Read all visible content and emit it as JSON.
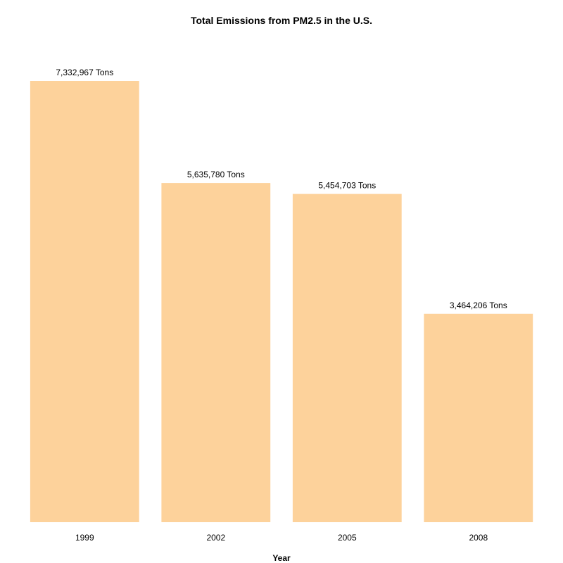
{
  "chart_data": {
    "type": "bar",
    "title": "Total Emissions from PM2.5 in the U.S.",
    "xlabel": "Year",
    "ylabel": "",
    "categories": [
      "1999",
      "2002",
      "2005",
      "2008"
    ],
    "values": [
      7332967,
      5635780,
      5454703,
      3464206
    ],
    "value_labels": [
      "7,332,967 Tons",
      "5,635,780 Tons",
      "5,454,703 Tons",
      "3,464,206 Tons"
    ],
    "ylim": [
      0,
      7332967
    ],
    "grid": false,
    "legend": "none",
    "bar_color": "#fdd29b",
    "text_color": "#000000",
    "background": "#ffffff"
  }
}
